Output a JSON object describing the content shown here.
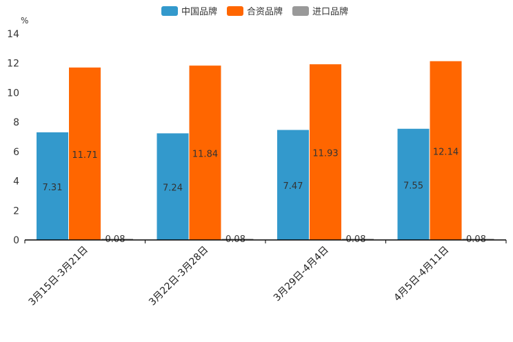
{
  "chart_data": {
    "type": "bar",
    "unit_label": "%",
    "categories": [
      "3月15日-3月21日",
      "3月22日-3月28日",
      "3月29日-4月4日",
      "4月5日-4月11日"
    ],
    "series": [
      {
        "name": "中国品牌",
        "color": "#3399cc",
        "values": [
          7.31,
          7.24,
          7.47,
          7.55
        ]
      },
      {
        "name": "合资品牌",
        "color": "#ff6600",
        "values": [
          11.71,
          11.84,
          11.93,
          12.14
        ]
      },
      {
        "name": "进口品牌",
        "color": "#999999",
        "values": [
          0.08,
          0.08,
          0.08,
          0.08
        ]
      }
    ],
    "ylim": [
      0,
      14
    ],
    "yticks": [
      0,
      2,
      4,
      6,
      8,
      10,
      12,
      14
    ],
    "legend": "top-center",
    "grid": false
  }
}
